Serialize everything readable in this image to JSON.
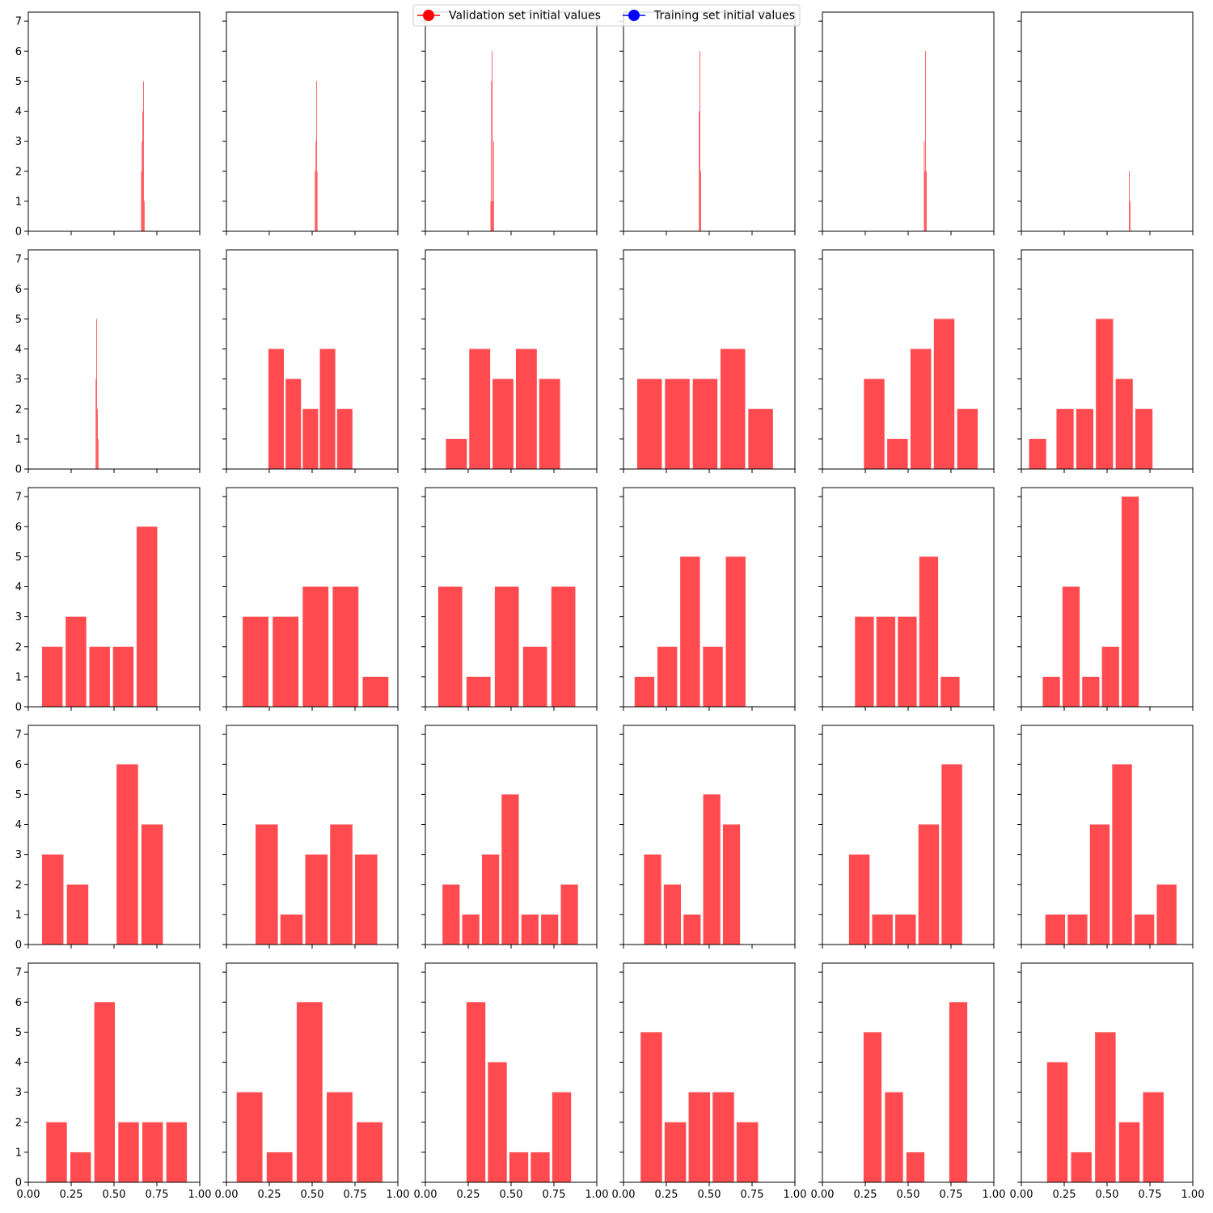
{
  "legend": {
    "items": [
      {
        "label": "Validation set initial values",
        "color": "#ff0000"
      },
      {
        "label": "Training set initial values",
        "color": "#0000ff"
      }
    ]
  },
  "chart_data": {
    "type": "bar",
    "layout": "5x6-grid",
    "shared_axes": true,
    "xlim": [
      0,
      1
    ],
    "ylim": [
      0,
      7.3
    ],
    "xticks": [
      0.0,
      0.25,
      0.5,
      0.75,
      1.0
    ],
    "xtick_labels": [
      "0.00",
      "0.25",
      "0.50",
      "0.75",
      "1.00"
    ],
    "yticks": [
      0,
      1,
      2,
      3,
      4,
      5,
      6,
      7
    ],
    "ytick_labels": [
      "0",
      "1",
      "2",
      "3",
      "4",
      "5",
      "6",
      "7"
    ],
    "bar_color": "#ff4b4f",
    "grid": false,
    "legend_position": "top-center",
    "panels": [
      {
        "bars": [
          {
            "x0": 0.658,
            "x1": 0.662,
            "value": 2
          },
          {
            "x0": 0.662,
            "x1": 0.666,
            "value": 3
          },
          {
            "x0": 0.666,
            "x1": 0.67,
            "value": 4
          },
          {
            "x0": 0.67,
            "x1": 0.674,
            "value": 5
          },
          {
            "x0": 0.674,
            "x1": 0.678,
            "value": 1
          }
        ]
      },
      {
        "bars": [
          {
            "x0": 0.516,
            "x1": 0.52,
            "value": 2
          },
          {
            "x0": 0.52,
            "x1": 0.524,
            "value": 3
          },
          {
            "x0": 0.524,
            "x1": 0.527,
            "value": 5
          },
          {
            "x0": 0.527,
            "x1": 0.531,
            "value": 2
          }
        ]
      },
      {
        "bars": [
          {
            "x0": 0.38,
            "x1": 0.384,
            "value": 1
          },
          {
            "x0": 0.384,
            "x1": 0.388,
            "value": 5
          },
          {
            "x0": 0.388,
            "x1": 0.392,
            "value": 6
          },
          {
            "x0": 0.392,
            "x1": 0.396,
            "value": 1
          },
          {
            "x0": 0.396,
            "x1": 0.4,
            "value": 3
          }
        ]
      },
      {
        "bars": [
          {
            "x0": 0.44,
            "x1": 0.444,
            "value": 4
          },
          {
            "x0": 0.444,
            "x1": 0.448,
            "value": 6
          },
          {
            "x0": 0.448,
            "x1": 0.452,
            "value": 2
          }
        ]
      },
      {
        "bars": [
          {
            "x0": 0.592,
            "x1": 0.596,
            "value": 3
          },
          {
            "x0": 0.596,
            "x1": 0.6,
            "value": 2
          },
          {
            "x0": 0.6,
            "x1": 0.604,
            "value": 6
          },
          {
            "x0": 0.604,
            "x1": 0.608,
            "value": 2
          }
        ]
      },
      {
        "bars": [
          {
            "x0": 0.628,
            "x1": 0.632,
            "value": 2
          },
          {
            "x0": 0.632,
            "x1": 0.636,
            "value": 1
          }
        ]
      },
      {
        "bars": [
          {
            "x0": 0.393,
            "x1": 0.397,
            "value": 3
          },
          {
            "x0": 0.397,
            "x1": 0.401,
            "value": 5
          },
          {
            "x0": 0.401,
            "x1": 0.405,
            "value": 2
          },
          {
            "x0": 0.405,
            "x1": 0.409,
            "value": 1
          }
        ]
      },
      {
        "bars": [
          {
            "x0": 0.245,
            "x1": 0.335,
            "value": 4
          },
          {
            "x0": 0.345,
            "x1": 0.435,
            "value": 3
          },
          {
            "x0": 0.445,
            "x1": 0.535,
            "value": 2
          },
          {
            "x0": 0.545,
            "x1": 0.635,
            "value": 4
          },
          {
            "x0": 0.645,
            "x1": 0.735,
            "value": 2
          }
        ]
      },
      {
        "bars": [
          {
            "x0": 0.12,
            "x1": 0.242,
            "value": 1
          },
          {
            "x0": 0.256,
            "x1": 0.378,
            "value": 4
          },
          {
            "x0": 0.392,
            "x1": 0.514,
            "value": 3
          },
          {
            "x0": 0.528,
            "x1": 0.65,
            "value": 4
          },
          {
            "x0": 0.664,
            "x1": 0.786,
            "value": 3
          }
        ]
      },
      {
        "bars": [
          {
            "x0": 0.08,
            "x1": 0.224,
            "value": 3
          },
          {
            "x0": 0.242,
            "x1": 0.386,
            "value": 3
          },
          {
            "x0": 0.404,
            "x1": 0.548,
            "value": 3
          },
          {
            "x0": 0.566,
            "x1": 0.71,
            "value": 4
          },
          {
            "x0": 0.728,
            "x1": 0.872,
            "value": 2
          }
        ]
      },
      {
        "bars": [
          {
            "x0": 0.242,
            "x1": 0.362,
            "value": 3
          },
          {
            "x0": 0.378,
            "x1": 0.498,
            "value": 1
          },
          {
            "x0": 0.514,
            "x1": 0.634,
            "value": 4
          },
          {
            "x0": 0.65,
            "x1": 0.77,
            "value": 5
          },
          {
            "x0": 0.786,
            "x1": 0.906,
            "value": 2
          }
        ]
      },
      {
        "bars": [
          {
            "x0": 0.045,
            "x1": 0.145,
            "value": 1
          },
          {
            "x0": 0.205,
            "x1": 0.305,
            "value": 2
          },
          {
            "x0": 0.32,
            "x1": 0.42,
            "value": 2
          },
          {
            "x0": 0.435,
            "x1": 0.535,
            "value": 5
          },
          {
            "x0": 0.55,
            "x1": 0.65,
            "value": 3
          },
          {
            "x0": 0.665,
            "x1": 0.765,
            "value": 2
          }
        ]
      },
      {
        "bars": [
          {
            "x0": 0.08,
            "x1": 0.2,
            "value": 2
          },
          {
            "x0": 0.218,
            "x1": 0.338,
            "value": 3
          },
          {
            "x0": 0.356,
            "x1": 0.476,
            "value": 2
          },
          {
            "x0": 0.494,
            "x1": 0.614,
            "value": 2
          },
          {
            "x0": 0.632,
            "x1": 0.752,
            "value": 6
          }
        ]
      },
      {
        "bars": [
          {
            "x0": 0.095,
            "x1": 0.245,
            "value": 3
          },
          {
            "x0": 0.27,
            "x1": 0.42,
            "value": 3
          },
          {
            "x0": 0.445,
            "x1": 0.595,
            "value": 4
          },
          {
            "x0": 0.62,
            "x1": 0.77,
            "value": 4
          },
          {
            "x0": 0.795,
            "x1": 0.945,
            "value": 1
          }
        ]
      },
      {
        "bars": [
          {
            "x0": 0.075,
            "x1": 0.215,
            "value": 4
          },
          {
            "x0": 0.24,
            "x1": 0.38,
            "value": 1
          },
          {
            "x0": 0.405,
            "x1": 0.545,
            "value": 4
          },
          {
            "x0": 0.57,
            "x1": 0.71,
            "value": 2
          },
          {
            "x0": 0.735,
            "x1": 0.875,
            "value": 4
          }
        ]
      },
      {
        "bars": [
          {
            "x0": 0.065,
            "x1": 0.18,
            "value": 1
          },
          {
            "x0": 0.198,
            "x1": 0.313,
            "value": 2
          },
          {
            "x0": 0.331,
            "x1": 0.446,
            "value": 5
          },
          {
            "x0": 0.464,
            "x1": 0.579,
            "value": 2
          },
          {
            "x0": 0.597,
            "x1": 0.712,
            "value": 5
          }
        ]
      },
      {
        "bars": [
          {
            "x0": 0.19,
            "x1": 0.3,
            "value": 3
          },
          {
            "x0": 0.315,
            "x1": 0.425,
            "value": 3
          },
          {
            "x0": 0.44,
            "x1": 0.55,
            "value": 3
          },
          {
            "x0": 0.565,
            "x1": 0.675,
            "value": 5
          },
          {
            "x0": 0.69,
            "x1": 0.8,
            "value": 1
          }
        ]
      },
      {
        "bars": [
          {
            "x0": 0.125,
            "x1": 0.225,
            "value": 1
          },
          {
            "x0": 0.24,
            "x1": 0.34,
            "value": 4
          },
          {
            "x0": 0.355,
            "x1": 0.455,
            "value": 1
          },
          {
            "x0": 0.47,
            "x1": 0.57,
            "value": 2
          },
          {
            "x0": 0.585,
            "x1": 0.685,
            "value": 7
          }
        ]
      },
      {
        "bars": [
          {
            "x0": 0.08,
            "x1": 0.205,
            "value": 3
          },
          {
            "x0": 0.225,
            "x1": 0.35,
            "value": 2
          },
          {
            "x0": 0.515,
            "x1": 0.64,
            "value": 6
          },
          {
            "x0": 0.66,
            "x1": 0.785,
            "value": 4
          }
        ]
      },
      {
        "bars": [
          {
            "x0": 0.17,
            "x1": 0.3,
            "value": 4
          },
          {
            "x0": 0.315,
            "x1": 0.445,
            "value": 1
          },
          {
            "x0": 0.46,
            "x1": 0.59,
            "value": 3
          },
          {
            "x0": 0.605,
            "x1": 0.735,
            "value": 4
          },
          {
            "x0": 0.75,
            "x1": 0.88,
            "value": 3
          }
        ]
      },
      {
        "bars": [
          {
            "x0": 0.1,
            "x1": 0.2,
            "value": 2
          },
          {
            "x0": 0.215,
            "x1": 0.315,
            "value": 1
          },
          {
            "x0": 0.33,
            "x1": 0.43,
            "value": 3
          },
          {
            "x0": 0.445,
            "x1": 0.545,
            "value": 5
          },
          {
            "x0": 0.56,
            "x1": 0.66,
            "value": 1
          },
          {
            "x0": 0.675,
            "x1": 0.775,
            "value": 1
          },
          {
            "x0": 0.79,
            "x1": 0.89,
            "value": 2
          }
        ]
      },
      {
        "bars": [
          {
            "x0": 0.12,
            "x1": 0.22,
            "value": 3
          },
          {
            "x0": 0.235,
            "x1": 0.335,
            "value": 2
          },
          {
            "x0": 0.35,
            "x1": 0.45,
            "value": 1
          },
          {
            "x0": 0.465,
            "x1": 0.565,
            "value": 5
          },
          {
            "x0": 0.58,
            "x1": 0.68,
            "value": 4
          }
        ]
      },
      {
        "bars": [
          {
            "x0": 0.155,
            "x1": 0.275,
            "value": 3
          },
          {
            "x0": 0.29,
            "x1": 0.41,
            "value": 1
          },
          {
            "x0": 0.425,
            "x1": 0.545,
            "value": 1
          },
          {
            "x0": 0.56,
            "x1": 0.68,
            "value": 4
          },
          {
            "x0": 0.695,
            "x1": 0.815,
            "value": 6
          }
        ]
      },
      {
        "bars": [
          {
            "x0": 0.14,
            "x1": 0.255,
            "value": 1
          },
          {
            "x0": 0.27,
            "x1": 0.385,
            "value": 1
          },
          {
            "x0": 0.4,
            "x1": 0.515,
            "value": 4
          },
          {
            "x0": 0.53,
            "x1": 0.645,
            "value": 6
          },
          {
            "x0": 0.66,
            "x1": 0.775,
            "value": 1
          },
          {
            "x0": 0.79,
            "x1": 0.905,
            "value": 2
          }
        ]
      },
      {
        "bars": [
          {
            "x0": 0.105,
            "x1": 0.225,
            "value": 2
          },
          {
            "x0": 0.245,
            "x1": 0.365,
            "value": 1
          },
          {
            "x0": 0.385,
            "x1": 0.505,
            "value": 6
          },
          {
            "x0": 0.525,
            "x1": 0.645,
            "value": 2
          },
          {
            "x0": 0.665,
            "x1": 0.785,
            "value": 2
          },
          {
            "x0": 0.805,
            "x1": 0.925,
            "value": 2
          }
        ]
      },
      {
        "bars": [
          {
            "x0": 0.06,
            "x1": 0.21,
            "value": 3
          },
          {
            "x0": 0.235,
            "x1": 0.385,
            "value": 1
          },
          {
            "x0": 0.41,
            "x1": 0.56,
            "value": 6
          },
          {
            "x0": 0.585,
            "x1": 0.735,
            "value": 3
          },
          {
            "x0": 0.76,
            "x1": 0.91,
            "value": 2
          }
        ]
      },
      {
        "bars": [
          {
            "x0": 0.24,
            "x1": 0.35,
            "value": 6
          },
          {
            "x0": 0.365,
            "x1": 0.475,
            "value": 4
          },
          {
            "x0": 0.49,
            "x1": 0.6,
            "value": 1
          },
          {
            "x0": 0.615,
            "x1": 0.725,
            "value": 1
          },
          {
            "x0": 0.74,
            "x1": 0.85,
            "value": 3
          }
        ]
      },
      {
        "bars": [
          {
            "x0": 0.1,
            "x1": 0.225,
            "value": 5
          },
          {
            "x0": 0.24,
            "x1": 0.365,
            "value": 2
          },
          {
            "x0": 0.38,
            "x1": 0.505,
            "value": 3
          },
          {
            "x0": 0.52,
            "x1": 0.645,
            "value": 3
          },
          {
            "x0": 0.66,
            "x1": 0.785,
            "value": 2
          }
        ]
      },
      {
        "bars": [
          {
            "x0": 0.24,
            "x1": 0.345,
            "value": 5
          },
          {
            "x0": 0.365,
            "x1": 0.47,
            "value": 3
          },
          {
            "x0": 0.49,
            "x1": 0.595,
            "value": 1
          },
          {
            "x0": 0.74,
            "x1": 0.845,
            "value": 6
          }
        ]
      },
      {
        "bars": [
          {
            "x0": 0.15,
            "x1": 0.27,
            "value": 4
          },
          {
            "x0": 0.29,
            "x1": 0.41,
            "value": 1
          },
          {
            "x0": 0.43,
            "x1": 0.55,
            "value": 5
          },
          {
            "x0": 0.57,
            "x1": 0.69,
            "value": 2
          },
          {
            "x0": 0.71,
            "x1": 0.83,
            "value": 3
          }
        ]
      }
    ]
  }
}
